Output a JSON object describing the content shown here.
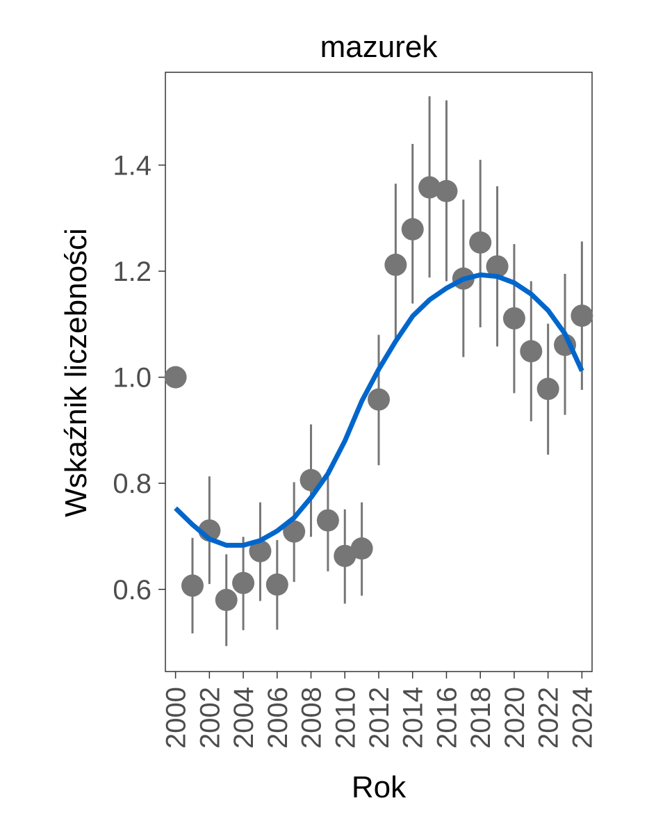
{
  "chart_data": {
    "type": "scatter",
    "title": "mazurek",
    "xlabel": "Rok",
    "ylabel": "Wskaźnik liczebności",
    "xlim": [
      1999.4,
      2024.6
    ],
    "ylim": [
      0.445,
      1.575
    ],
    "x_ticks": [
      2000,
      2002,
      2004,
      2006,
      2008,
      2010,
      2012,
      2014,
      2016,
      2018,
      2020,
      2022,
      2024
    ],
    "x_tick_labels": [
      "2000",
      "2002",
      "2004",
      "2006",
      "2008",
      "2010",
      "2012",
      "2014",
      "2016",
      "2018",
      "2020",
      "2022",
      "2024"
    ],
    "y_ticks": [
      0.6,
      0.8,
      1.0,
      1.2,
      1.4
    ],
    "y_tick_labels": [
      "0.6",
      "0.8",
      "1.0",
      "1.2",
      "1.4"
    ],
    "grid": false,
    "series": [
      {
        "type": "points_with_errorbars",
        "color": "#767676",
        "x": [
          2000,
          2001,
          2002,
          2003,
          2004,
          2005,
          2006,
          2007,
          2008,
          2009,
          2010,
          2011,
          2012,
          2013,
          2014,
          2015,
          2016,
          2017,
          2018,
          2019,
          2020,
          2021,
          2022,
          2023,
          2024
        ],
        "y": [
          1.0,
          0.607,
          0.711,
          0.58,
          0.612,
          0.672,
          0.609,
          0.709,
          0.806,
          0.73,
          0.663,
          0.677,
          0.958,
          1.212,
          1.279,
          1.358,
          1.351,
          1.186,
          1.254,
          1.209,
          1.111,
          1.049,
          0.978,
          1.061,
          1.116
        ],
        "lower": [
          null,
          0.517,
          0.61,
          0.493,
          0.523,
          0.578,
          0.524,
          0.614,
          0.699,
          0.634,
          0.573,
          0.588,
          0.834,
          1.068,
          1.139,
          1.188,
          1.181,
          1.038,
          1.094,
          1.058,
          0.97,
          0.917,
          0.854,
          0.929,
          0.976
        ],
        "upper": [
          null,
          0.697,
          0.813,
          0.666,
          0.699,
          0.764,
          0.693,
          0.802,
          0.911,
          0.826,
          0.751,
          0.764,
          1.08,
          1.365,
          1.44,
          1.53,
          1.522,
          1.335,
          1.41,
          1.36,
          1.251,
          1.181,
          1.101,
          1.195,
          1.256
        ]
      },
      {
        "type": "line",
        "color": "#0066cc",
        "x": [
          2000,
          2001,
          2002,
          2003,
          2004,
          2005,
          2006,
          2007,
          2008,
          2009,
          2010,
          2011,
          2012,
          2013,
          2014,
          2015,
          2016,
          2017,
          2018,
          2019,
          2020,
          2021,
          2022,
          2023,
          2024
        ],
        "y": [
          0.753,
          0.722,
          0.695,
          0.683,
          0.683,
          0.692,
          0.71,
          0.735,
          0.773,
          0.818,
          0.88,
          0.955,
          1.015,
          1.068,
          1.115,
          1.146,
          1.168,
          1.185,
          1.193,
          1.19,
          1.178,
          1.157,
          1.126,
          1.082,
          1.012
        ]
      }
    ]
  }
}
